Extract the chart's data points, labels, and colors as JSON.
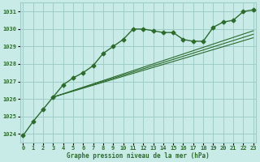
{
  "background_color": "#c8ebe8",
  "grid_color": "#9ecdc8",
  "line_color": "#2d6b2d",
  "marker_color": "#2d6b2d",
  "text_color": "#2d6b2d",
  "xlabel": "Graphe pression niveau de la mer (hPa)",
  "ylim": [
    1023.5,
    1031.5
  ],
  "xlim": [
    -0.3,
    23.3
  ],
  "yticks": [
    1024,
    1025,
    1026,
    1027,
    1028,
    1029,
    1030,
    1031
  ],
  "xticks": [
    0,
    1,
    2,
    3,
    4,
    5,
    6,
    7,
    8,
    9,
    10,
    11,
    12,
    13,
    14,
    15,
    16,
    17,
    18,
    19,
    20,
    21,
    22,
    23
  ],
  "main_series": {
    "x": [
      0,
      1,
      2,
      3,
      4,
      5,
      6,
      7,
      8,
      9,
      10,
      11,
      12,
      13,
      14,
      15,
      16,
      17,
      18,
      19,
      20,
      21,
      22,
      23
    ],
    "y": [
      1023.9,
      1024.7,
      1025.4,
      1026.1,
      1026.8,
      1027.2,
      1027.5,
      1027.9,
      1028.6,
      1029.0,
      1029.4,
      1030.0,
      1030.0,
      1029.9,
      1029.8,
      1029.8,
      1029.4,
      1029.3,
      1029.3,
      1030.1,
      1030.4,
      1030.5,
      1031.0,
      1031.1
    ]
  },
  "linear_series": [
    {
      "x": [
        3,
        23
      ],
      "y": [
        1026.1,
        1029.5
      ]
    },
    {
      "x": [
        3,
        23
      ],
      "y": [
        1026.1,
        1029.7
      ]
    },
    {
      "x": [
        3,
        23
      ],
      "y": [
        1026.1,
        1029.9
      ]
    }
  ]
}
